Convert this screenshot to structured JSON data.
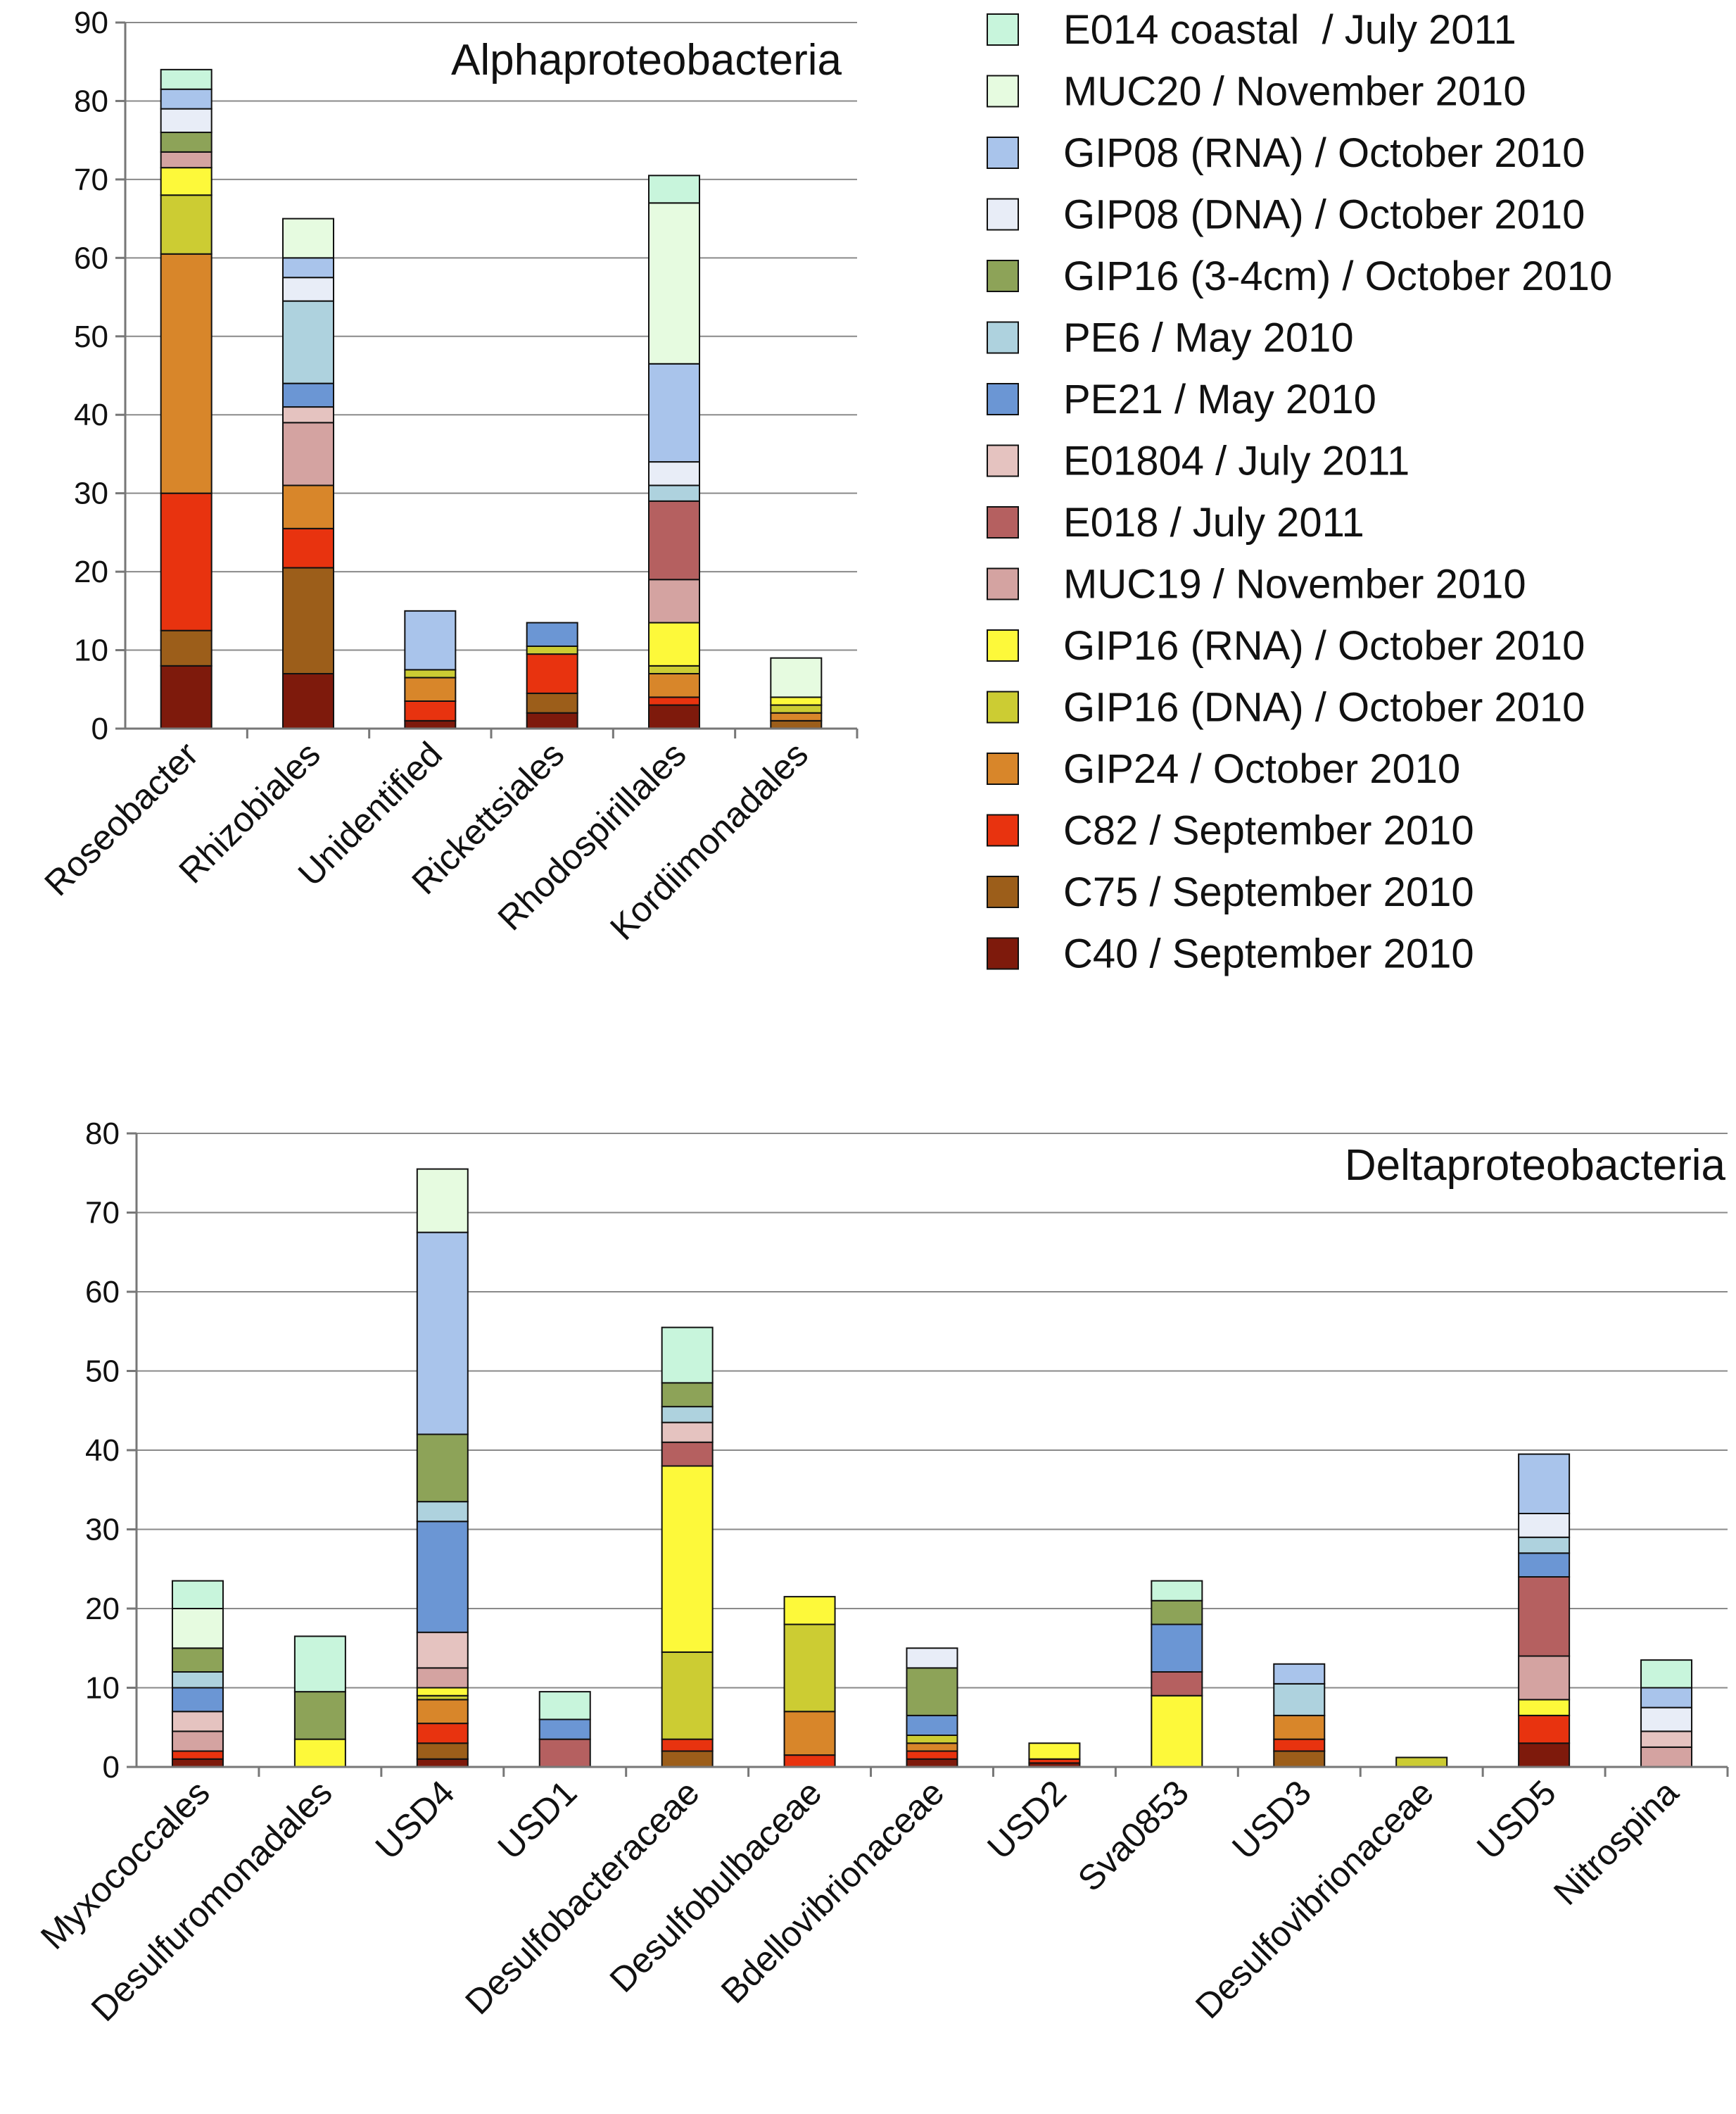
{
  "legend": [
    {
      "label": "E014 coastal  / July 2011",
      "color": "#c8f5dc"
    },
    {
      "label": "MUC20 / November 2010",
      "color": "#e6fbe0"
    },
    {
      "label": "GIP08 (RNA) / October 2010",
      "color": "#a9c4eb"
    },
    {
      "label": "GIP08 (DNA) / October 2010",
      "color": "#e8edf7"
    },
    {
      "label": "GIP16 (3-4cm) / October 2010",
      "color": "#8da358"
    },
    {
      "label": "PE6 / May 2010",
      "color": "#aed2de"
    },
    {
      "label": "PE21 / May 2010",
      "color": "#6b96d4"
    },
    {
      "label": "E01804 / July 2011",
      "color": "#e5c3c0"
    },
    {
      "label": "E018 / July 2011",
      "color": "#b56060"
    },
    {
      "label": "MUC19 / November 2010",
      "color": "#d4a3a1"
    },
    {
      "label": "GIP16 (RNA) / October 2010",
      "color": "#fdf93a"
    },
    {
      "label": "GIP16 (DNA) / October 2010",
      "color": "#cccc33"
    },
    {
      "label": "GIP24 / October 2010",
      "color": "#d8862a"
    },
    {
      "label": "C82 / September 2010",
      "color": "#e8330f"
    },
    {
      "label": "C75 / September 2010",
      "color": "#9c5e1a"
    },
    {
      "label": "C40 / September 2010",
      "color": "#7e1a0c"
    }
  ],
  "chart_data": [
    {
      "type": "bar",
      "stacked": true,
      "title": "Alphaproteobacteria",
      "ylim": [
        0,
        90
      ],
      "yticks": [
        0,
        10,
        20,
        30,
        40,
        50,
        60,
        70,
        80,
        90
      ],
      "categories": [
        "Roseobacter",
        "Rhizobiales",
        "Unidentified",
        "Rickettsiales",
        "Rhodospirillales",
        "Kordiimonadales"
      ],
      "segments": [
        [
          [
            15,
            8
          ],
          [
            14,
            4.5
          ],
          [
            13,
            17.5
          ],
          [
            12,
            30.5
          ],
          [
            11,
            7.5
          ],
          [
            10,
            3.5
          ],
          [
            9,
            2
          ],
          [
            4,
            2.5
          ],
          [
            3,
            3
          ],
          [
            2,
            2.5
          ],
          [
            0,
            2.5
          ]
        ],
        [
          [
            15,
            7
          ],
          [
            14,
            13.5
          ],
          [
            13,
            5
          ],
          [
            12,
            5.5
          ],
          [
            9,
            8
          ],
          [
            7,
            2
          ],
          [
            6,
            3
          ],
          [
            5,
            10.5
          ],
          [
            3,
            3
          ],
          [
            2,
            2.5
          ],
          [
            1,
            5
          ]
        ],
        [
          [
            15,
            1
          ],
          [
            13,
            2.5
          ],
          [
            12,
            3
          ],
          [
            11,
            1
          ],
          [
            2,
            7.5
          ]
        ],
        [
          [
            15,
            2
          ],
          [
            14,
            2.5
          ],
          [
            13,
            5
          ],
          [
            11,
            1
          ],
          [
            6,
            3
          ]
        ],
        [
          [
            15,
            3
          ],
          [
            13,
            1
          ],
          [
            12,
            3
          ],
          [
            11,
            1
          ],
          [
            10,
            5.5
          ],
          [
            9,
            5.5
          ],
          [
            8,
            10
          ],
          [
            5,
            2
          ],
          [
            3,
            3
          ],
          [
            2,
            12.5
          ],
          [
            1,
            20.5
          ],
          [
            0,
            3.5
          ]
        ],
        [
          [
            14,
            1
          ],
          [
            12,
            1
          ],
          [
            11,
            1
          ],
          [
            10,
            1
          ],
          [
            1,
            5
          ]
        ]
      ]
    },
    {
      "type": "bar",
      "stacked": true,
      "title": "Deltaproteobacteria",
      "ylim": [
        0,
        80
      ],
      "yticks": [
        0,
        10,
        20,
        30,
        40,
        50,
        60,
        70,
        80
      ],
      "categories": [
        "Myxococcales",
        "Desulfuromonadales",
        "USD4",
        "USD1",
        "Desulfobacteraceae",
        "Desulfobulbaceae",
        "Bdellovibrionaceae",
        "USD2",
        "Sva0853",
        "USD3",
        "Desulfovibrionaceae",
        "USD5",
        "Nitrospina"
      ],
      "segments": [
        [
          [
            15,
            1
          ],
          [
            13,
            1
          ],
          [
            9,
            2.5
          ],
          [
            7,
            2.5
          ],
          [
            6,
            3
          ],
          [
            5,
            2
          ],
          [
            4,
            3
          ],
          [
            1,
            5
          ],
          [
            0,
            3.5
          ]
        ],
        [
          [
            10,
            3.5
          ],
          [
            4,
            6
          ],
          [
            0,
            7
          ]
        ],
        [
          [
            15,
            1
          ],
          [
            14,
            2
          ],
          [
            13,
            2.5
          ],
          [
            12,
            3
          ],
          [
            11,
            0.5
          ],
          [
            10,
            1
          ],
          [
            9,
            2.5
          ],
          [
            7,
            4.5
          ],
          [
            6,
            14
          ],
          [
            5,
            2.5
          ],
          [
            4,
            8.5
          ],
          [
            2,
            25.5
          ],
          [
            1,
            8
          ]
        ],
        [
          [
            8,
            3.5
          ],
          [
            6,
            2.5
          ],
          [
            0,
            3.5
          ]
        ],
        [
          [
            14,
            2
          ],
          [
            13,
            1.5
          ],
          [
            11,
            11
          ],
          [
            10,
            23.5
          ],
          [
            8,
            3
          ],
          [
            7,
            2.5
          ],
          [
            5,
            2
          ],
          [
            4,
            3
          ],
          [
            0,
            7
          ]
        ],
        [
          [
            13,
            1.5
          ],
          [
            12,
            5.5
          ],
          [
            11,
            11
          ],
          [
            10,
            3.5
          ]
        ],
        [
          [
            15,
            1
          ],
          [
            13,
            1
          ],
          [
            12,
            1
          ],
          [
            11,
            1
          ],
          [
            6,
            2.5
          ],
          [
            4,
            6
          ],
          [
            3,
            2.5
          ]
        ],
        [
          [
            15,
            0.5
          ],
          [
            13,
            0.5
          ],
          [
            10,
            2
          ]
        ],
        [
          [
            10,
            9
          ],
          [
            8,
            3
          ],
          [
            6,
            6
          ],
          [
            4,
            3
          ],
          [
            0,
            2.5
          ]
        ],
        [
          [
            14,
            2
          ],
          [
            13,
            1.5
          ],
          [
            12,
            3
          ],
          [
            5,
            4
          ],
          [
            2,
            2.5
          ]
        ],
        [
          [
            11,
            1.2
          ]
        ],
        [
          [
            15,
            3
          ],
          [
            13,
            3.5
          ],
          [
            10,
            2
          ],
          [
            9,
            5.5
          ],
          [
            8,
            10
          ],
          [
            6,
            3
          ],
          [
            5,
            2
          ],
          [
            3,
            3
          ],
          [
            2,
            7.5
          ]
        ],
        [
          [
            9,
            2.5
          ],
          [
            7,
            2
          ],
          [
            3,
            3
          ],
          [
            2,
            2.5
          ],
          [
            0,
            3.5
          ]
        ]
      ]
    }
  ]
}
